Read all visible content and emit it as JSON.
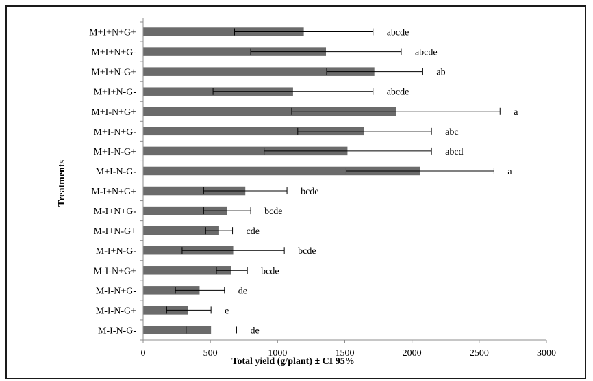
{
  "chart_data": {
    "type": "bar",
    "orientation": "horizontal",
    "xlabel": "Total yield (g/plant) ± CI 95%",
    "ylabel": "Treatments",
    "xlim": [
      0,
      3000
    ],
    "xticks": [
      0,
      500,
      1000,
      1500,
      2000,
      2500,
      3000
    ],
    "grid": false,
    "colors": {
      "bar": "#6b6b6b",
      "axis": "#8c8c8c",
      "error": "#000000"
    },
    "categories": [
      "M+I+N+G+",
      "M+I+N+G-",
      "M+I+N-G+",
      "M+I+N-G-",
      "M+I-N+G+",
      "M+I-N+G-",
      "M+I-N-G+",
      "M+I-N-G-",
      "M-I+N+G+",
      "M-I+N+G-",
      "M-I+N-G+",
      "M-I+N-G-",
      "M-I-N+G+",
      "M-I-N+G-",
      "M-I-N-G+",
      "M-I-N-G-"
    ],
    "values": [
      1195,
      1360,
      1720,
      1115,
      1880,
      1645,
      1520,
      2060,
      760,
      625,
      565,
      670,
      655,
      420,
      335,
      505
    ],
    "ci_low": [
      680,
      800,
      1365,
      520,
      1105,
      1150,
      900,
      1510,
      450,
      450,
      465,
      290,
      545,
      240,
      175,
      320
    ],
    "ci_high": [
      1710,
      1920,
      2080,
      1710,
      2655,
      2145,
      2145,
      2610,
      1070,
      800,
      665,
      1050,
      775,
      605,
      505,
      695
    ],
    "significance": [
      "abcde",
      "abcde",
      "ab",
      "abcde",
      "a",
      "abc",
      "abcd",
      "a",
      "bcde",
      "bcde",
      "cde",
      "bcde",
      "bcde",
      "de",
      "e",
      "de"
    ]
  }
}
